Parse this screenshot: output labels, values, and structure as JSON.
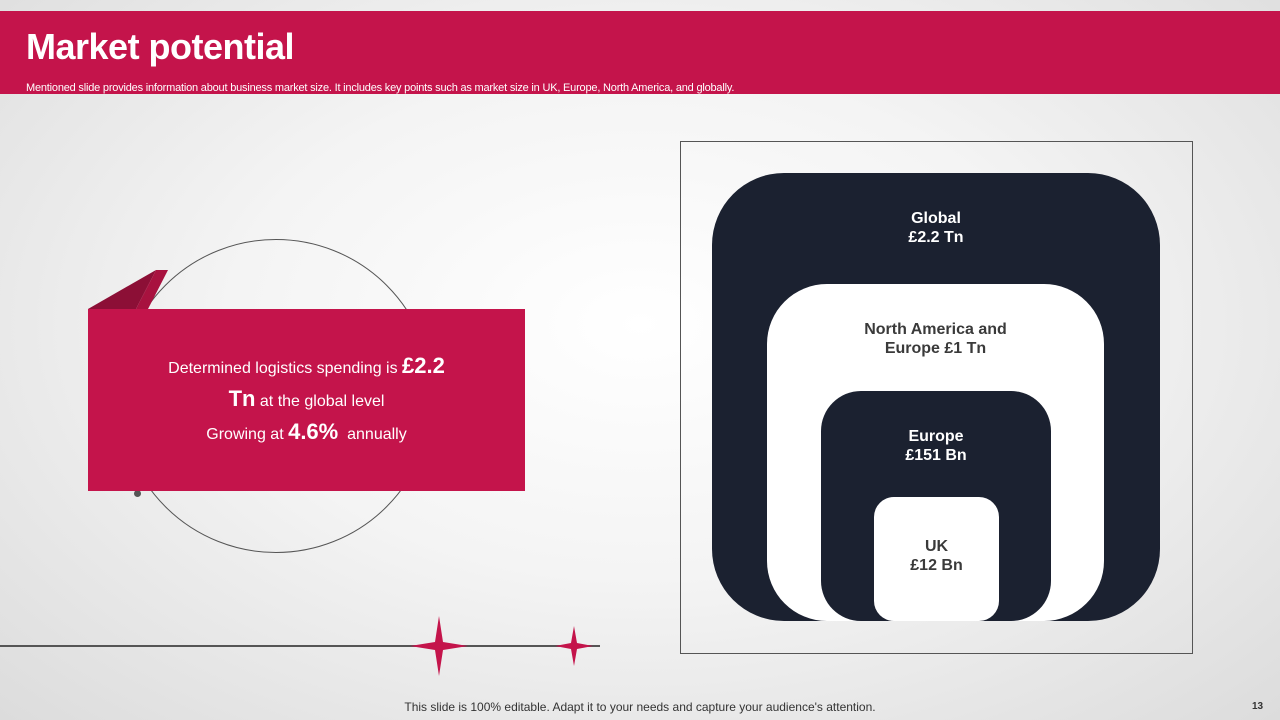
{
  "header": {
    "title": "Market potential",
    "subtitle": "Mentioned slide provides information about business market size. It includes key points such as market size in UK, Europe, North America, and globally."
  },
  "callout": {
    "line1_text": "Determined logistics spending is ",
    "line1_value": "£2.2",
    "line2_value": "Tn",
    "line2_text": " at the global level",
    "line3_text": "Growing at ",
    "line3_value": "4.6%",
    "line3_suffix": "  annually"
  },
  "market": {
    "global": {
      "name": "Global",
      "value": "£2.2 Tn"
    },
    "north_america_europe": {
      "name": "North America and",
      "value": "Europe £1 Tn"
    },
    "europe": {
      "name": "Europe",
      "value": "£151 Bn"
    },
    "uk": {
      "name": "UK",
      "value": "£12 Bn"
    }
  },
  "footer": {
    "note": "This slide is 100% editable. Adapt it to your needs and capture your audience's attention.",
    "page_number": "13"
  },
  "colors": {
    "accent": "#c4144b",
    "dark_navy": "#1b2130",
    "white": "#ffffff"
  }
}
